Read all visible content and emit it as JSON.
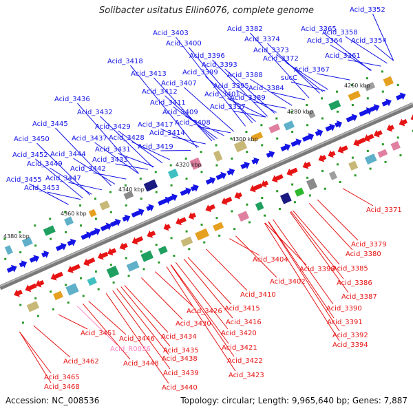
{
  "title": "Solibacter usitatus Ellin6076, complete genome",
  "footer": {
    "accession": "Accession: NC_008536",
    "topology": "Topology: circular; Length: 9,965,640 bp; Genes: 7,887"
  },
  "colors": {
    "forward": "#1414e6",
    "reverse": "#e61414",
    "rna": "#ff80c0",
    "backbone": "#7a7a7a",
    "tick": "#2a9a2a"
  },
  "kbp_ticks": [
    "4260 kbp",
    "4280 kbp",
    "4300 kbp",
    "4320 kbp",
    "4340 kbp",
    "4360 kbp",
    "4380 kbp"
  ],
  "top_labels": [
    "Acid_3352",
    "Acid_3382",
    "Acid_3365",
    "Acid_3358",
    "Acid_3403",
    "Acid_3374",
    "Acid_3364",
    "Acid_3354",
    "Acid_3400",
    "Acid_3373",
    "Acid_3372",
    "Acid_3361",
    "Acid_3396",
    "Acid_3418",
    "Acid_3393",
    "Acid_3367",
    "Acid_3399",
    "Acid_3413",
    "Acid_3388",
    "Acid_3407",
    "Acid_3395",
    "Acid_3384",
    "sucC",
    "Acid_3412",
    "Acid_3401",
    "Acid_3389",
    "Acid_3436",
    "Acid_3411",
    "Acid_3397",
    "Acid_3432",
    "Acid_3409",
    "Acid_3408",
    "Acid_3445",
    "Acid_3429",
    "Acid_3417",
    "Acid_3414",
    "Acid_3437",
    "Acid_3428",
    "Acid_3450",
    "Acid_3431",
    "Acid_3419",
    "Acid_3452",
    "Acid_3444",
    "Acid_3433",
    "Acid_3449",
    "Acid_3442",
    "Acid_3455",
    "Acid_3447",
    "Acid_3453"
  ],
  "bottom_labels": [
    "Acid_3371",
    "Acid_3379",
    "Acid_3380",
    "Acid_3404",
    "Acid_3398",
    "Acid_3385",
    "Acid_3402",
    "Acid_3386",
    "Acid_3387",
    "Acid_3410",
    "Acid_3390",
    "Acid_3426",
    "Acid_3415",
    "Acid_3391",
    "Acid_3416",
    "Acid_3430",
    "Acid_3420",
    "Acid_3392",
    "Acid_3451",
    "Acid_3446",
    "Acid_3434",
    "Acid_3394",
    "Acid_R0036",
    "Acid_3421",
    "Acid_3435",
    "Acid_3462",
    "Acid_3448",
    "Acid_3438",
    "Acid_3422",
    "Acid_3423",
    "Acid_3439",
    "Acid_3465",
    "Acid_3468",
    "Acid_3440"
  ]
}
